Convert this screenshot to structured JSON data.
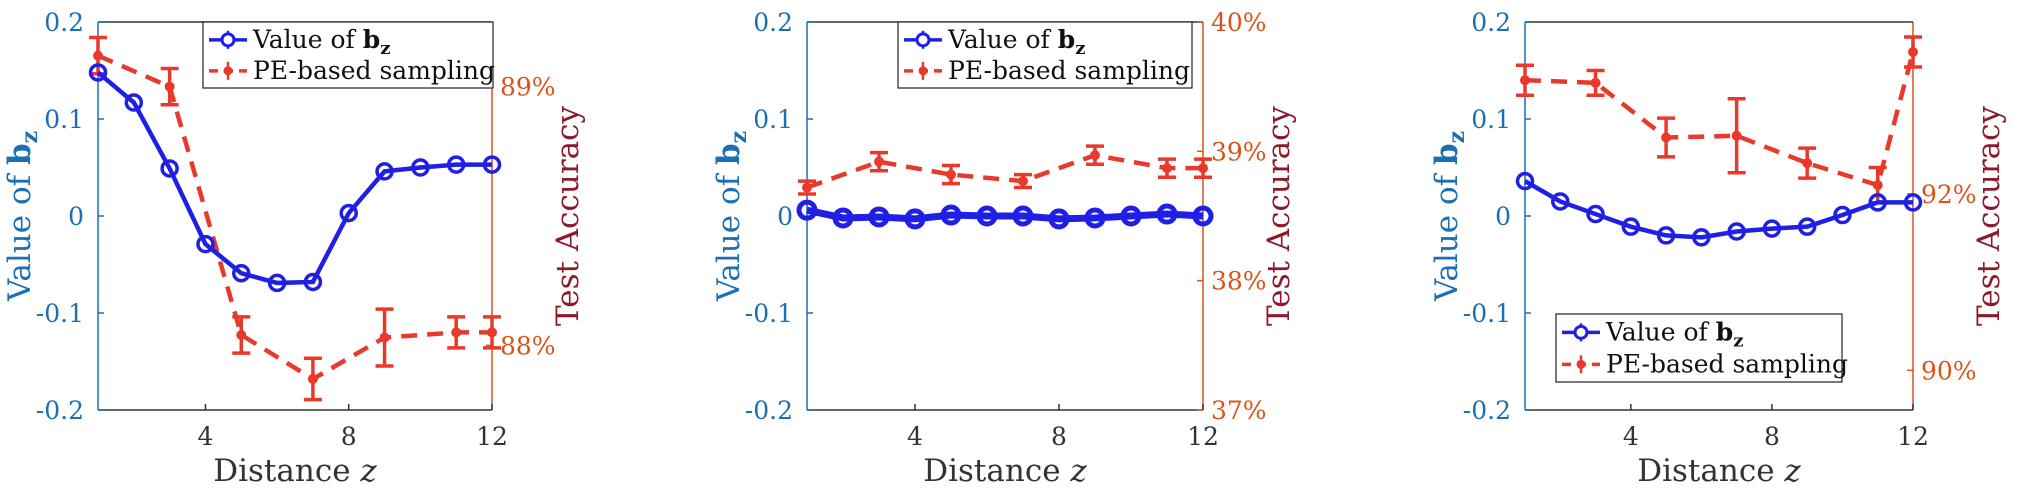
{
  "colors": {
    "left_axis": "#1a6fb5",
    "right_axis": "#d9541a",
    "right_label": "#8b1a2b",
    "bz_series": "#1f1fe6",
    "pe_series": "#e8392b",
    "x_axis": "#333333"
  },
  "chart_data": [
    {
      "type": "line",
      "xlabel": "Distance z",
      "ylabel_left": "Value of b_z",
      "ylabel_right": "Test Accuracy",
      "xlim": [
        1,
        12
      ],
      "ylim_left": [
        -0.2,
        0.2
      ],
      "ylim_right": [
        87.75,
        89.25
      ],
      "x_ticks": [
        4,
        8,
        12
      ],
      "y_ticks_left": [
        -0.2,
        -0.1,
        0,
        0.1,
        0.2
      ],
      "y_ticks_left_labels": [
        "-0.2",
        "-0.1",
        "0",
        "0.1",
        "0.2"
      ],
      "y_ticks_right": [
        88,
        89
      ],
      "y_ticks_right_labels": [
        "88%",
        "89%"
      ],
      "legend_placement": "top-center",
      "legend": [
        "Value of b_z",
        "PE-based sampling"
      ],
      "series": [
        {
          "name": "Value of b_z",
          "axis": "left",
          "style": "solid-circle",
          "x": [
            1,
            2,
            3,
            4,
            5,
            6,
            7,
            8,
            9,
            10,
            11,
            12
          ],
          "y": [
            0.148,
            0.117,
            0.049,
            -0.029,
            -0.059,
            -0.069,
            -0.068,
            0.003,
            0.046,
            0.05,
            0.053,
            0.053
          ]
        },
        {
          "name": "PE-based sampling",
          "axis": "right",
          "style": "dashed-errorbar",
          "x": [
            1,
            3,
            5,
            7,
            9,
            11,
            12
          ],
          "y": [
            89.12,
            89.0,
            88.04,
            87.87,
            88.03,
            88.05,
            88.05
          ],
          "err": [
            0.07,
            0.07,
            0.07,
            0.08,
            0.11,
            0.06,
            0.06
          ]
        }
      ]
    },
    {
      "type": "line",
      "xlabel": "Distance z",
      "ylabel_left": "Value of b_z",
      "ylabel_right": "Test Accuracy",
      "xlim": [
        1,
        12
      ],
      "ylim_left": [
        -0.2,
        0.2
      ],
      "ylim_right": [
        37.0,
        40.0
      ],
      "x_ticks": [
        4,
        8,
        12
      ],
      "y_ticks_left": [
        -0.2,
        -0.1,
        0,
        0.1,
        0.2
      ],
      "y_ticks_left_labels": [
        "-0.2",
        "-0.1",
        "0",
        "0.1",
        "0.2"
      ],
      "y_ticks_right": [
        37,
        38,
        39,
        40
      ],
      "y_ticks_right_labels": [
        "37%",
        "38%",
        "39%",
        "40%"
      ],
      "legend_placement": "top-right",
      "legend": [
        "Value of b_z",
        "PE-based sampling"
      ],
      "series": [
        {
          "name": "Value of b_z",
          "axis": "left",
          "style": "solid-circle",
          "x": [
            1,
            2,
            3,
            4,
            5,
            6,
            7,
            8,
            9,
            10,
            11,
            12
          ],
          "y": [
            0.006,
            -0.002,
            -0.001,
            -0.003,
            0.001,
            0.0,
            0.0,
            -0.003,
            -0.002,
            0.0,
            0.002,
            0.0
          ]
        },
        {
          "name": "PE-based sampling",
          "axis": "right",
          "style": "dashed-errorbar",
          "x": [
            1,
            3,
            5,
            7,
            9,
            11,
            12
          ],
          "y": [
            38.72,
            38.92,
            38.82,
            38.77,
            38.97,
            38.87,
            38.87
          ],
          "err": [
            0.05,
            0.07,
            0.07,
            0.05,
            0.07,
            0.07,
            0.07
          ]
        }
      ]
    },
    {
      "type": "line",
      "xlabel": "Distance z",
      "ylabel_left": "Value of b_z",
      "ylabel_right": "Test Accuracy",
      "xlim": [
        1,
        12
      ],
      "ylim_left": [
        -0.2,
        0.2
      ],
      "ylim_right": [
        89.55,
        93.95
      ],
      "x_ticks": [
        4,
        8,
        12
      ],
      "y_ticks_left": [
        -0.2,
        -0.1,
        0,
        0.1,
        0.2
      ],
      "y_ticks_left_labels": [
        "-0.2",
        "-0.1",
        "0",
        "0.1",
        "0.2"
      ],
      "y_ticks_right": [
        90,
        92
      ],
      "y_ticks_right_labels": [
        "90%",
        "92%"
      ],
      "legend_placement": "bottom-center",
      "legend": [
        "Value of b_z",
        "PE-based sampling"
      ],
      "series": [
        {
          "name": "Value of b_z",
          "axis": "left",
          "style": "solid-circle",
          "x": [
            1,
            2,
            3,
            4,
            5,
            6,
            7,
            8,
            9,
            10,
            11,
            12
          ],
          "y": [
            0.036,
            0.015,
            0.002,
            -0.011,
            -0.02,
            -0.022,
            -0.016,
            -0.013,
            -0.011,
            0.001,
            0.014,
            0.014
          ]
        },
        {
          "name": "PE-based sampling",
          "axis": "right",
          "style": "dashed-errorbar",
          "x": [
            1,
            3,
            5,
            7,
            9,
            11,
            12
          ],
          "y": [
            93.29,
            93.26,
            92.64,
            92.66,
            92.35,
            92.1,
            93.61
          ],
          "err": [
            0.17,
            0.14,
            0.22,
            0.42,
            0.17,
            0.2,
            0.17
          ]
        }
      ]
    }
  ]
}
